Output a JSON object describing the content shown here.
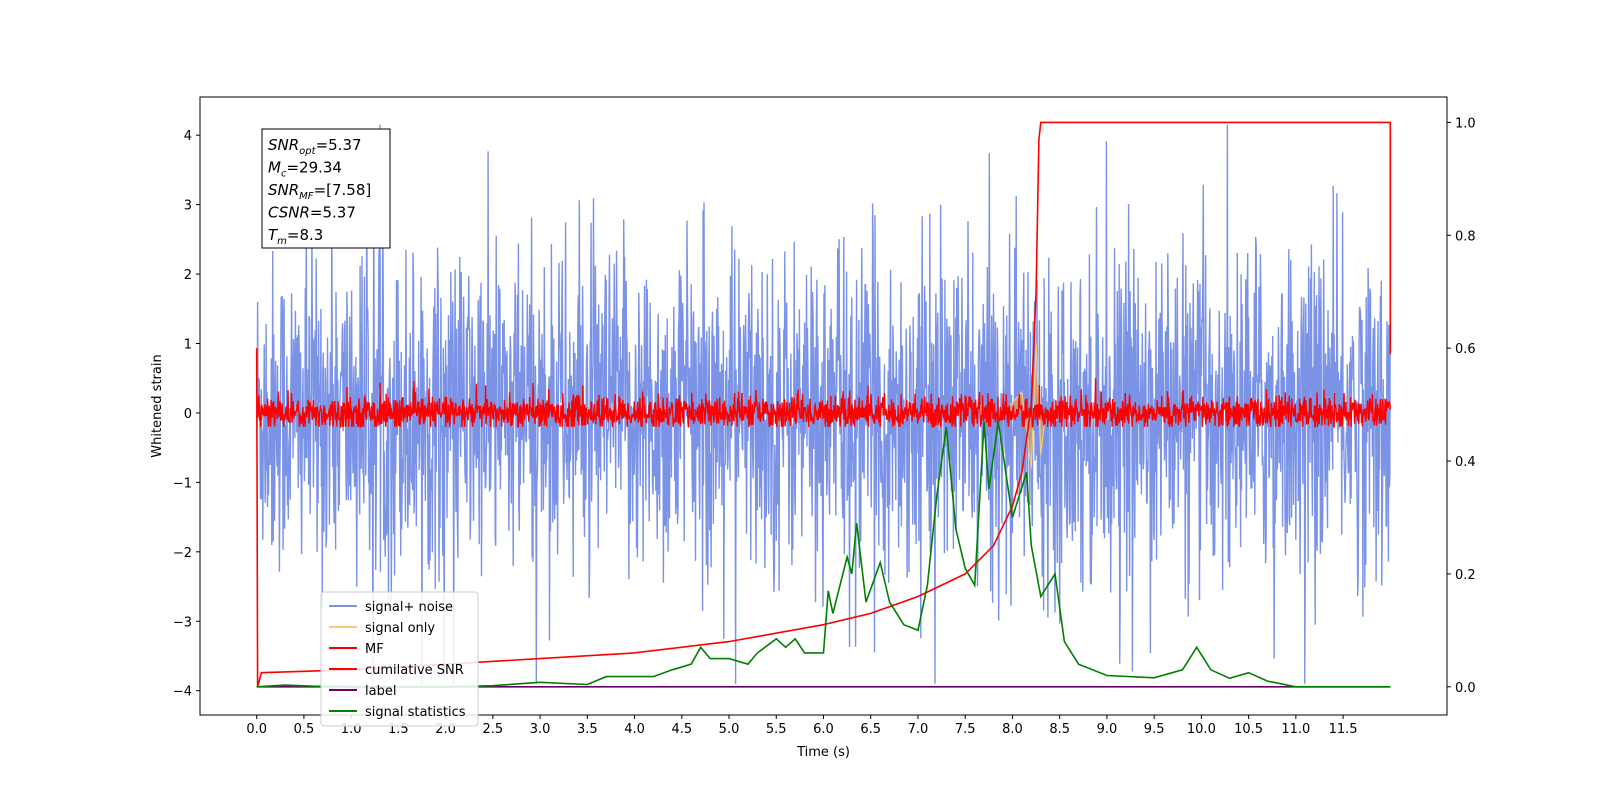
{
  "chart_data": {
    "type": "line",
    "xlabel": "Time (s)",
    "ylabel": "Whitened strain",
    "xlim": [
      -0.6,
      12.6
    ],
    "ylim": [
      -4.35,
      4.55
    ],
    "ylim_right": [
      -0.05,
      1.045
    ],
    "x_ticks": [
      0.0,
      0.5,
      1.0,
      1.5,
      2.0,
      2.5,
      3.0,
      3.5,
      4.0,
      4.5,
      5.0,
      5.5,
      6.0,
      6.5,
      7.0,
      7.5,
      8.0,
      8.5,
      9.0,
      9.5,
      10.0,
      10.5,
      11.0,
      11.5
    ],
    "x_tick_labels": [
      "0.0",
      "0.5",
      "1.0",
      "1.5",
      "2.0",
      "2.5",
      "3.0",
      "3.5",
      "4.0",
      "4.5",
      "5.0",
      "5.5",
      "6.0",
      "6.5",
      "7.0",
      "7.5",
      "8.0",
      "8.5",
      "9.0",
      "9.5",
      "10.0",
      "10.5",
      "11.0",
      "11.5"
    ],
    "y_ticks_left": [
      -4,
      -3,
      -2,
      -1,
      0,
      1,
      2,
      3,
      4
    ],
    "y_tick_labels_left": [
      "−4",
      "−3",
      "−2",
      "−1",
      "0",
      "1",
      "2",
      "3",
      "4"
    ],
    "y_ticks_right": [
      0.0,
      0.2,
      0.4,
      0.6,
      0.8,
      1.0
    ],
    "y_tick_labels_right": [
      "0.0",
      "0.2",
      "0.4",
      "0.6",
      "0.8",
      "1.0"
    ],
    "legend_position": "lower-left",
    "grid": false,
    "stats_box": {
      "lines": [
        {
          "sym": "SNR",
          "sub": "opt",
          "val": "=5.37"
        },
        {
          "sym": "M",
          "sub": "c",
          "val": "=29.34"
        },
        {
          "sym": "SNR",
          "sub": "MF",
          "val": "=[7.58]"
        },
        {
          "sym": "CSNR",
          "sub": "",
          "val": "=5.37"
        },
        {
          "sym": "T",
          "sub": "m",
          "val": "=8.3"
        }
      ]
    },
    "series": [
      {
        "name": "signal+ noise",
        "color": "#7b93e6",
        "axis": "left",
        "description": "dense whitened noise spanning approx -4 to 4 over 0–12 s",
        "x_range": [
          0.0,
          12.0
        ],
        "y_envelope": [
          -3.9,
          4.15
        ]
      },
      {
        "name": "signal only",
        "color": "#f5cd7a",
        "axis": "left",
        "points": [
          [
            7.9,
            0.0
          ],
          [
            8.1,
            0.3
          ],
          [
            8.2,
            -0.8
          ],
          [
            8.25,
            1.0
          ],
          [
            8.3,
            -0.6
          ],
          [
            8.35,
            0.0
          ]
        ]
      },
      {
        "name": "MF",
        "color": "#ff0000",
        "axis": "left",
        "description": "matched filter output oscillating near 0",
        "x_range": [
          0.0,
          12.0
        ],
        "y_envelope": [
          -0.2,
          0.5
        ]
      },
      {
        "name": "cumilative SNR",
        "color": "#ff0000",
        "axis": "right",
        "points": [
          [
            0.0,
            0.6
          ],
          [
            0.01,
            0.0
          ],
          [
            0.05,
            0.025
          ],
          [
            1.0,
            0.03
          ],
          [
            2.0,
            0.04
          ],
          [
            3.0,
            0.05
          ],
          [
            4.0,
            0.06
          ],
          [
            5.0,
            0.08
          ],
          [
            6.0,
            0.11
          ],
          [
            6.5,
            0.13
          ],
          [
            7.0,
            0.16
          ],
          [
            7.5,
            0.2
          ],
          [
            7.8,
            0.25
          ],
          [
            8.0,
            0.32
          ],
          [
            8.1,
            0.38
          ],
          [
            8.2,
            0.5
          ],
          [
            8.25,
            0.7
          ],
          [
            8.28,
            0.97
          ],
          [
            8.3,
            1.0
          ],
          [
            12.0,
            1.0
          ],
          [
            12.0,
            0.59
          ]
        ]
      },
      {
        "name": "label",
        "color": "#6a006a",
        "axis": "right",
        "points": [
          [
            0.0,
            0.0
          ],
          [
            12.0,
            0.0
          ]
        ]
      },
      {
        "name": "signal statistics",
        "color": "#008000",
        "axis": "right",
        "points": [
          [
            0.0,
            0.0
          ],
          [
            0.3,
            0.003
          ],
          [
            0.6,
            0.001
          ],
          [
            1.0,
            0.0
          ],
          [
            2.0,
            0.0
          ],
          [
            2.5,
            0.002
          ],
          [
            3.0,
            0.008
          ],
          [
            3.5,
            0.004
          ],
          [
            3.7,
            0.018
          ],
          [
            4.0,
            0.018
          ],
          [
            4.2,
            0.018
          ],
          [
            4.4,
            0.03
          ],
          [
            4.6,
            0.04
          ],
          [
            4.7,
            0.07
          ],
          [
            4.8,
            0.05
          ],
          [
            5.0,
            0.05
          ],
          [
            5.2,
            0.04
          ],
          [
            5.3,
            0.06
          ],
          [
            5.5,
            0.085
          ],
          [
            5.6,
            0.07
          ],
          [
            5.7,
            0.085
          ],
          [
            5.8,
            0.06
          ],
          [
            6.0,
            0.06
          ],
          [
            6.05,
            0.17
          ],
          [
            6.1,
            0.13
          ],
          [
            6.25,
            0.23
          ],
          [
            6.3,
            0.2
          ],
          [
            6.35,
            0.29
          ],
          [
            6.45,
            0.15
          ],
          [
            6.6,
            0.22
          ],
          [
            6.7,
            0.15
          ],
          [
            6.85,
            0.11
          ],
          [
            7.0,
            0.1
          ],
          [
            7.1,
            0.18
          ],
          [
            7.2,
            0.34
          ],
          [
            7.3,
            0.46
          ],
          [
            7.4,
            0.28
          ],
          [
            7.5,
            0.21
          ],
          [
            7.6,
            0.18
          ],
          [
            7.7,
            0.47
          ],
          [
            7.75,
            0.35
          ],
          [
            7.85,
            0.47
          ],
          [
            8.0,
            0.3
          ],
          [
            8.15,
            0.38
          ],
          [
            8.2,
            0.25
          ],
          [
            8.3,
            0.16
          ],
          [
            8.45,
            0.2
          ],
          [
            8.55,
            0.08
          ],
          [
            8.7,
            0.04
          ],
          [
            9.0,
            0.02
          ],
          [
            9.5,
            0.016
          ],
          [
            9.8,
            0.03
          ],
          [
            9.95,
            0.07
          ],
          [
            10.1,
            0.03
          ],
          [
            10.3,
            0.015
          ],
          [
            10.5,
            0.025
          ],
          [
            10.7,
            0.01
          ],
          [
            11.0,
            0.0
          ],
          [
            12.0,
            0.0
          ]
        ]
      }
    ]
  }
}
